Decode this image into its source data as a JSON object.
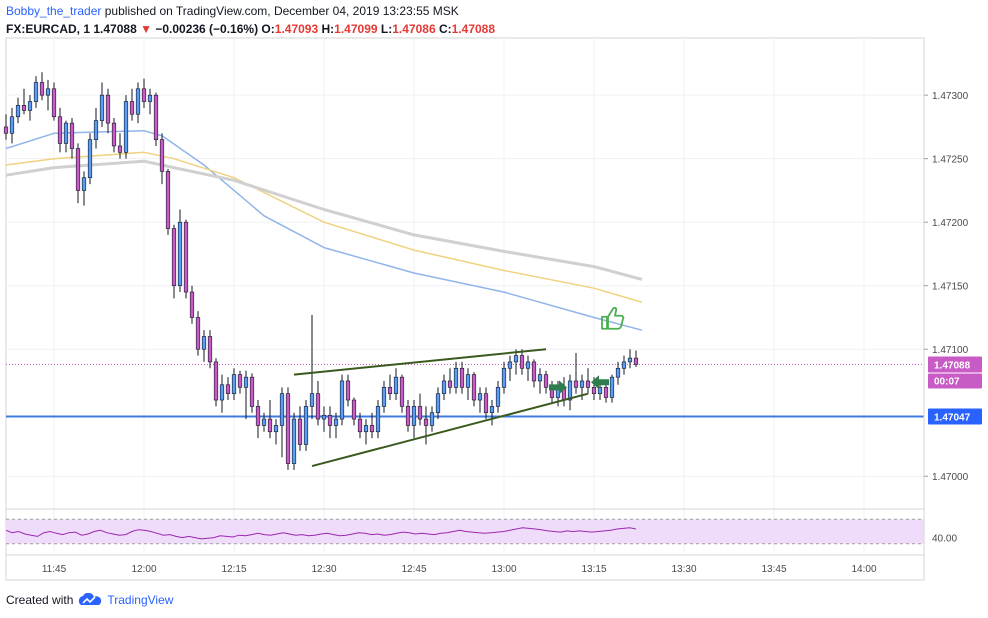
{
  "header": {
    "author": "Bobby_the_trader",
    "published_text": "published on TradingView.com, December 04, 2019 13:23:55 MSK",
    "symbol_line": "FX:EURCAD, 1",
    "last_price": "1.47088",
    "change_arrow": "▼",
    "change_text": "−0.00236 (−0.16%)",
    "o_key": "O:",
    "o_val": "1.47093",
    "h_key": "H:",
    "h_val": "1.47099",
    "l_key": "L:",
    "l_val": "1.47086",
    "c_key": "C:",
    "c_val": "1.47088"
  },
  "footer": {
    "created_with": "Created with",
    "brand": "TradingView"
  },
  "colors": {
    "bull": "#5b9cf6",
    "bear": "#c95bc7",
    "wick": "#131722",
    "ma_fast": "#8fb6e8",
    "ma_mid": "#f0d27f",
    "ma_slow": "#d0d0d0",
    "support": "#3d7be0",
    "channel": "#3a5a1e",
    "price_badge": "#c95bc7",
    "support_badge": "#2962ff",
    "rsi_line": "#9c27b0",
    "rsi_band": "#efdcfa",
    "thumb": "#4caf50",
    "arrow": "#2e7d4f"
  },
  "chart_data": {
    "type": "candlestick",
    "symbol": "FX:EURCAD",
    "timeframe": "1",
    "ylim": [
      1.46975,
      1.47345
    ],
    "yticks": [
      "1.47300",
      "1.47250",
      "1.47200",
      "1.47150",
      "1.47100",
      "1.47000"
    ],
    "xticks": [
      "11:45",
      "12:00",
      "12:15",
      "12:30",
      "12:45",
      "13:00",
      "13:15",
      "13:30",
      "13:45",
      "14:00"
    ],
    "x_range": [
      "11:37",
      "14:10"
    ],
    "support_level": 1.47047,
    "support_label": "1.47047",
    "price_label": "1.47088",
    "countdown_label": "00:07",
    "rsi_label": "40.00",
    "candles": [
      {
        "t": "11:37",
        "o": 1.47275,
        "h": 1.47285,
        "l": 1.47265,
        "c": 1.4727
      },
      {
        "t": "11:38",
        "o": 1.4727,
        "h": 1.4729,
        "l": 1.47262,
        "c": 1.47283
      },
      {
        "t": "11:39",
        "o": 1.47283,
        "h": 1.47298,
        "l": 1.47278,
        "c": 1.47292
      },
      {
        "t": "11:40",
        "o": 1.47292,
        "h": 1.47305,
        "l": 1.47285,
        "c": 1.47288
      },
      {
        "t": "11:41",
        "o": 1.47288,
        "h": 1.473,
        "l": 1.4728,
        "c": 1.47295
      },
      {
        "t": "11:42",
        "o": 1.47295,
        "h": 1.47315,
        "l": 1.4729,
        "c": 1.4731
      },
      {
        "t": "11:43",
        "o": 1.4731,
        "h": 1.47318,
        "l": 1.47296,
        "c": 1.473
      },
      {
        "t": "11:44",
        "o": 1.473,
        "h": 1.47312,
        "l": 1.47288,
        "c": 1.47305
      },
      {
        "t": "11:45",
        "o": 1.47305,
        "h": 1.4731,
        "l": 1.4728,
        "c": 1.47283
      },
      {
        "t": "11:46",
        "o": 1.47283,
        "h": 1.4729,
        "l": 1.47255,
        "c": 1.47262
      },
      {
        "t": "11:47",
        "o": 1.47262,
        "h": 1.4728,
        "l": 1.47255,
        "c": 1.47278
      },
      {
        "t": "11:48",
        "o": 1.47278,
        "h": 1.47282,
        "l": 1.4725,
        "c": 1.47258
      },
      {
        "t": "11:49",
        "o": 1.47258,
        "h": 1.47262,
        "l": 1.47215,
        "c": 1.47225
      },
      {
        "t": "11:50",
        "o": 1.47225,
        "h": 1.4724,
        "l": 1.47213,
        "c": 1.47235
      },
      {
        "t": "11:51",
        "o": 1.47235,
        "h": 1.4727,
        "l": 1.4723,
        "c": 1.47265
      },
      {
        "t": "11:52",
        "o": 1.47265,
        "h": 1.4729,
        "l": 1.47258,
        "c": 1.4728
      },
      {
        "t": "11:53",
        "o": 1.4728,
        "h": 1.4731,
        "l": 1.47275,
        "c": 1.473
      },
      {
        "t": "11:54",
        "o": 1.473,
        "h": 1.47305,
        "l": 1.4727,
        "c": 1.47278
      },
      {
        "t": "11:55",
        "o": 1.47278,
        "h": 1.47282,
        "l": 1.47255,
        "c": 1.4726
      },
      {
        "t": "11:56",
        "o": 1.4726,
        "h": 1.4727,
        "l": 1.4725,
        "c": 1.47255
      },
      {
        "t": "11:57",
        "o": 1.47255,
        "h": 1.473,
        "l": 1.4725,
        "c": 1.47295
      },
      {
        "t": "11:58",
        "o": 1.47295,
        "h": 1.47305,
        "l": 1.4728,
        "c": 1.47285
      },
      {
        "t": "11:59",
        "o": 1.47285,
        "h": 1.4731,
        "l": 1.47278,
        "c": 1.47305
      },
      {
        "t": "12:00",
        "o": 1.47305,
        "h": 1.47313,
        "l": 1.4729,
        "c": 1.47295
      },
      {
        "t": "12:01",
        "o": 1.47295,
        "h": 1.47305,
        "l": 1.47285,
        "c": 1.473
      },
      {
        "t": "12:02",
        "o": 1.473,
        "h": 1.47302,
        "l": 1.4726,
        "c": 1.47265
      },
      {
        "t": "12:03",
        "o": 1.47265,
        "h": 1.4727,
        "l": 1.4723,
        "c": 1.4724
      },
      {
        "t": "12:04",
        "o": 1.4724,
        "h": 1.47242,
        "l": 1.4719,
        "c": 1.47195
      },
      {
        "t": "12:05",
        "o": 1.47195,
        "h": 1.47198,
        "l": 1.4714,
        "c": 1.4715
      },
      {
        "t": "12:06",
        "o": 1.4715,
        "h": 1.4721,
        "l": 1.47145,
        "c": 1.472
      },
      {
        "t": "12:07",
        "o": 1.472,
        "h": 1.47202,
        "l": 1.4714,
        "c": 1.47145
      },
      {
        "t": "12:08",
        "o": 1.47145,
        "h": 1.4715,
        "l": 1.4712,
        "c": 1.47125
      },
      {
        "t": "12:09",
        "o": 1.47125,
        "h": 1.4713,
        "l": 1.47095,
        "c": 1.471
      },
      {
        "t": "12:10",
        "o": 1.471,
        "h": 1.47115,
        "l": 1.4709,
        "c": 1.4711
      },
      {
        "t": "12:11",
        "o": 1.4711,
        "h": 1.47115,
        "l": 1.47085,
        "c": 1.4709
      },
      {
        "t": "12:12",
        "o": 1.4709,
        "h": 1.47093,
        "l": 1.47055,
        "c": 1.4706
      },
      {
        "t": "12:13",
        "o": 1.4706,
        "h": 1.4708,
        "l": 1.4705,
        "c": 1.47072
      },
      {
        "t": "12:14",
        "o": 1.47072,
        "h": 1.47078,
        "l": 1.4706,
        "c": 1.47065
      },
      {
        "t": "12:15",
        "o": 1.47065,
        "h": 1.47085,
        "l": 1.4706,
        "c": 1.4708
      },
      {
        "t": "12:16",
        "o": 1.4708,
        "h": 1.47083,
        "l": 1.47065,
        "c": 1.4707
      },
      {
        "t": "12:17",
        "o": 1.4707,
        "h": 1.47083,
        "l": 1.47045,
        "c": 1.47078
      },
      {
        "t": "12:18",
        "o": 1.47078,
        "h": 1.47081,
        "l": 1.4705,
        "c": 1.47055
      },
      {
        "t": "12:19",
        "o": 1.47055,
        "h": 1.4706,
        "l": 1.4703,
        "c": 1.4704
      },
      {
        "t": "12:20",
        "o": 1.4704,
        "h": 1.4705,
        "l": 1.47035,
        "c": 1.47045
      },
      {
        "t": "12:21",
        "o": 1.47045,
        "h": 1.4706,
        "l": 1.4703,
        "c": 1.47035
      },
      {
        "t": "12:22",
        "o": 1.47035,
        "h": 1.47045,
        "l": 1.47025,
        "c": 1.4704
      },
      {
        "t": "12:23",
        "o": 1.4704,
        "h": 1.4707,
        "l": 1.47015,
        "c": 1.47065
      },
      {
        "t": "12:24",
        "o": 1.47065,
        "h": 1.4707,
        "l": 1.47005,
        "c": 1.4701
      },
      {
        "t": "12:25",
        "o": 1.4701,
        "h": 1.4705,
        "l": 1.47005,
        "c": 1.47045
      },
      {
        "t": "12:26",
        "o": 1.47045,
        "h": 1.47055,
        "l": 1.4702,
        "c": 1.47025
      },
      {
        "t": "12:27",
        "o": 1.47025,
        "h": 1.4706,
        "l": 1.4702,
        "c": 1.47055
      },
      {
        "t": "12:28",
        "o": 1.47055,
        "h": 1.47127,
        "l": 1.47045,
        "c": 1.47065
      },
      {
        "t": "12:29",
        "o": 1.47065,
        "h": 1.47075,
        "l": 1.4704,
        "c": 1.47045
      },
      {
        "t": "12:30",
        "o": 1.47045,
        "h": 1.47055,
        "l": 1.47035,
        "c": 1.47048
      },
      {
        "t": "12:31",
        "o": 1.47048,
        "h": 1.47055,
        "l": 1.4703,
        "c": 1.4704
      },
      {
        "t": "12:32",
        "o": 1.4704,
        "h": 1.4705,
        "l": 1.4703,
        "c": 1.47045
      },
      {
        "t": "12:33",
        "o": 1.47045,
        "h": 1.4708,
        "l": 1.4704,
        "c": 1.47075
      },
      {
        "t": "12:34",
        "o": 1.47075,
        "h": 1.4708,
        "l": 1.47055,
        "c": 1.4706
      },
      {
        "t": "12:35",
        "o": 1.4706,
        "h": 1.47062,
        "l": 1.4704,
        "c": 1.47045
      },
      {
        "t": "12:36",
        "o": 1.47045,
        "h": 1.4705,
        "l": 1.4703,
        "c": 1.47035
      },
      {
        "t": "12:37",
        "o": 1.47035,
        "h": 1.47045,
        "l": 1.47025,
        "c": 1.4704
      },
      {
        "t": "12:38",
        "o": 1.4704,
        "h": 1.4705,
        "l": 1.4703,
        "c": 1.47035
      },
      {
        "t": "12:39",
        "o": 1.47035,
        "h": 1.4706,
        "l": 1.4703,
        "c": 1.47055
      },
      {
        "t": "12:40",
        "o": 1.47055,
        "h": 1.47075,
        "l": 1.4705,
        "c": 1.4707
      },
      {
        "t": "12:41",
        "o": 1.4707,
        "h": 1.4708,
        "l": 1.4706,
        "c": 1.47065
      },
      {
        "t": "12:42",
        "o": 1.47065,
        "h": 1.47085,
        "l": 1.4706,
        "c": 1.47078
      },
      {
        "t": "12:43",
        "o": 1.47078,
        "h": 1.4708,
        "l": 1.4705,
        "c": 1.47055
      },
      {
        "t": "12:44",
        "o": 1.47055,
        "h": 1.4706,
        "l": 1.47035,
        "c": 1.4704
      },
      {
        "t": "12:45",
        "o": 1.4704,
        "h": 1.4706,
        "l": 1.4703,
        "c": 1.47055
      },
      {
        "t": "12:46",
        "o": 1.47055,
        "h": 1.47065,
        "l": 1.4704,
        "c": 1.47045
      },
      {
        "t": "12:47",
        "o": 1.47045,
        "h": 1.47055,
        "l": 1.47025,
        "c": 1.4704
      },
      {
        "t": "12:48",
        "o": 1.4704,
        "h": 1.47055,
        "l": 1.47035,
        "c": 1.4705
      },
      {
        "t": "12:49",
        "o": 1.4705,
        "h": 1.4707,
        "l": 1.47045,
        "c": 1.47065
      },
      {
        "t": "12:50",
        "o": 1.47065,
        "h": 1.4708,
        "l": 1.4706,
        "c": 1.47075
      },
      {
        "t": "12:51",
        "o": 1.47075,
        "h": 1.47085,
        "l": 1.47065,
        "c": 1.4707
      },
      {
        "t": "12:52",
        "o": 1.4707,
        "h": 1.4709,
        "l": 1.47065,
        "c": 1.47085
      },
      {
        "t": "12:53",
        "o": 1.47085,
        "h": 1.4709,
        "l": 1.47065,
        "c": 1.4707
      },
      {
        "t": "12:54",
        "o": 1.4707,
        "h": 1.47085,
        "l": 1.4706,
        "c": 1.4708
      },
      {
        "t": "12:55",
        "o": 1.4708,
        "h": 1.47082,
        "l": 1.47055,
        "c": 1.4706
      },
      {
        "t": "12:56",
        "o": 1.4706,
        "h": 1.4707,
        "l": 1.4705,
        "c": 1.47065
      },
      {
        "t": "12:57",
        "o": 1.47065,
        "h": 1.4707,
        "l": 1.47045,
        "c": 1.4705
      },
      {
        "t": "12:58",
        "o": 1.4705,
        "h": 1.4706,
        "l": 1.4704,
        "c": 1.47055
      },
      {
        "t": "12:59",
        "o": 1.47055,
        "h": 1.47075,
        "l": 1.4705,
        "c": 1.4707
      },
      {
        "t": "13:00",
        "o": 1.4707,
        "h": 1.4709,
        "l": 1.47065,
        "c": 1.47085
      },
      {
        "t": "13:01",
        "o": 1.47085,
        "h": 1.47095,
        "l": 1.47075,
        "c": 1.4709
      },
      {
        "t": "13:02",
        "o": 1.4709,
        "h": 1.471,
        "l": 1.4708,
        "c": 1.47095
      },
      {
        "t": "13:03",
        "o": 1.47095,
        "h": 1.471,
        "l": 1.4708,
        "c": 1.47085
      },
      {
        "t": "13:04",
        "o": 1.47085,
        "h": 1.47095,
        "l": 1.47075,
        "c": 1.4709
      },
      {
        "t": "13:05",
        "o": 1.4709,
        "h": 1.47092,
        "l": 1.4707,
        "c": 1.47075
      },
      {
        "t": "13:06",
        "o": 1.47075,
        "h": 1.47085,
        "l": 1.47065,
        "c": 1.4708
      },
      {
        "t": "13:07",
        "o": 1.4708,
        "h": 1.47083,
        "l": 1.47065,
        "c": 1.4707
      },
      {
        "t": "13:08",
        "o": 1.4707,
        "h": 1.47075,
        "l": 1.47058,
        "c": 1.47062
      },
      {
        "t": "13:09",
        "o": 1.47062,
        "h": 1.47075,
        "l": 1.47055,
        "c": 1.4707
      },
      {
        "t": "13:10",
        "o": 1.4707,
        "h": 1.47078,
        "l": 1.47055,
        "c": 1.4706
      },
      {
        "t": "13:11",
        "o": 1.4706,
        "h": 1.4708,
        "l": 1.47052,
        "c": 1.47075
      },
      {
        "t": "13:12",
        "o": 1.47075,
        "h": 1.47097,
        "l": 1.47065,
        "c": 1.4707
      },
      {
        "t": "13:13",
        "o": 1.4707,
        "h": 1.4708,
        "l": 1.4706,
        "c": 1.47075
      },
      {
        "t": "13:14",
        "o": 1.47075,
        "h": 1.47085,
        "l": 1.47065,
        "c": 1.4707
      },
      {
        "t": "13:15",
        "o": 1.4707,
        "h": 1.47078,
        "l": 1.4706,
        "c": 1.47065
      },
      {
        "t": "13:16",
        "o": 1.47065,
        "h": 1.47075,
        "l": 1.4706,
        "c": 1.4707
      },
      {
        "t": "13:17",
        "o": 1.4707,
        "h": 1.47072,
        "l": 1.47058,
        "c": 1.47062
      },
      {
        "t": "13:18",
        "o": 1.47062,
        "h": 1.4708,
        "l": 1.47058,
        "c": 1.47078
      },
      {
        "t": "13:19",
        "o": 1.47078,
        "h": 1.4709,
        "l": 1.47072,
        "c": 1.47085
      },
      {
        "t": "13:20",
        "o": 1.47085,
        "h": 1.47095,
        "l": 1.4708,
        "c": 1.4709
      },
      {
        "t": "13:21",
        "o": 1.4709,
        "h": 1.471,
        "l": 1.47085,
        "c": 1.47093
      },
      {
        "t": "13:22",
        "o": 1.47093,
        "h": 1.47099,
        "l": 1.47086,
        "c": 1.47088
      }
    ],
    "moving_averages": [
      {
        "name": "fast",
        "points": [
          [
            "11:37",
            1.47258
          ],
          [
            "11:45",
            1.4727
          ],
          [
            "12:00",
            1.47272
          ],
          [
            "12:03",
            1.47268
          ],
          [
            "12:10",
            1.47245
          ],
          [
            "12:20",
            1.47205
          ],
          [
            "12:30",
            1.4718
          ],
          [
            "12:45",
            1.4716
          ],
          [
            "13:00",
            1.47145
          ],
          [
            "13:15",
            1.47125
          ],
          [
            "13:23",
            1.47115
          ]
        ]
      },
      {
        "name": "mid",
        "points": [
          [
            "11:37",
            1.47245
          ],
          [
            "11:45",
            1.4725
          ],
          [
            "12:00",
            1.47255
          ],
          [
            "12:05",
            1.4725
          ],
          [
            "12:15",
            1.47235
          ],
          [
            "12:30",
            1.472
          ],
          [
            "12:45",
            1.47178
          ],
          [
            "13:00",
            1.47162
          ],
          [
            "13:15",
            1.47148
          ],
          [
            "13:23",
            1.47137
          ]
        ]
      },
      {
        "name": "slow",
        "points": [
          [
            "11:37",
            1.47237
          ],
          [
            "11:45",
            1.47243
          ],
          [
            "12:00",
            1.47248
          ],
          [
            "12:05",
            1.47243
          ],
          [
            "12:15",
            1.47233
          ],
          [
            "12:30",
            1.4721
          ],
          [
            "12:45",
            1.4719
          ],
          [
            "13:00",
            1.47177
          ],
          [
            "13:15",
            1.47165
          ],
          [
            "13:23",
            1.47155
          ]
        ]
      }
    ],
    "channel_lines": [
      [
        [
          "12:25",
          1.4708
        ],
        [
          "13:07",
          1.471
        ]
      ],
      [
        [
          "12:28",
          1.47008
        ],
        [
          "13:14",
          1.47065
        ]
      ]
    ],
    "rsi": {
      "level": 40,
      "values": [
        52,
        48,
        50,
        46,
        44,
        42,
        48,
        50,
        47,
        45,
        48,
        49,
        44,
        46,
        50,
        52,
        48,
        46,
        44,
        45,
        50,
        53,
        52,
        50,
        47,
        44,
        45,
        42,
        40,
        42,
        40,
        38,
        39,
        40,
        43,
        42,
        41,
        44,
        43,
        45,
        47,
        45,
        44,
        46,
        48,
        46,
        44,
        45,
        43,
        44,
        46,
        47,
        45,
        43,
        44,
        46,
        48,
        47,
        45,
        46,
        44,
        45,
        47,
        49,
        48,
        46,
        47,
        46,
        45,
        47,
        48,
        50,
        52,
        50,
        49,
        48,
        47,
        48,
        49,
        50,
        52,
        54,
        56,
        55,
        54,
        53,
        51,
        50,
        49,
        51,
        50,
        51,
        50,
        49,
        50,
        51,
        52,
        54,
        55,
        56,
        54
      ]
    }
  }
}
